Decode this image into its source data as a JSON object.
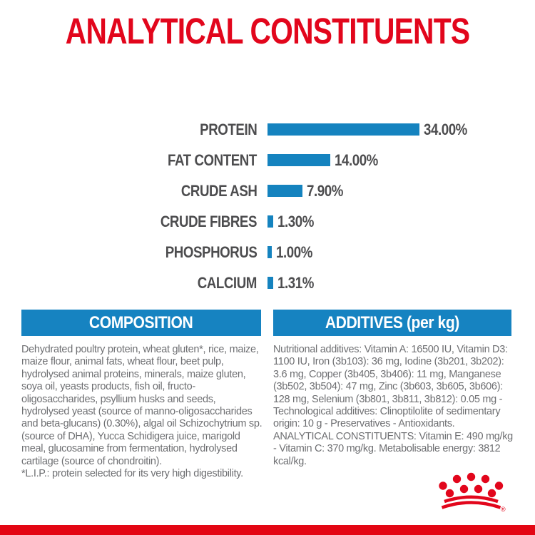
{
  "title": "ANALYTICAL CONSTITUENTS",
  "chart_data": {
    "type": "bar",
    "orientation": "horizontal",
    "categories": [
      "PROTEIN",
      "FAT CONTENT",
      "CRUDE ASH",
      "CRUDE FIBRES",
      "PHOSPHORUS",
      "CALCIUM"
    ],
    "values": [
      34.0,
      14.0,
      7.9,
      1.3,
      1.0,
      1.31
    ],
    "value_labels": [
      "34.00%",
      "14.00%",
      "7.90%",
      "1.30%",
      "1.00%",
      "1.31%"
    ],
    "title": "ANALYTICAL CONSTITUENTS",
    "xlabel": "",
    "ylabel": "",
    "xlim": [
      0,
      34
    ],
    "grid": false,
    "legend": false,
    "bar_color": "#1583bf",
    "label_color": "#4d4d4f"
  },
  "sections": {
    "composition": {
      "header": "COMPOSITION",
      "text": "Dehydrated poultry protein, wheat gluten*, rice, maize, maize flour, animal fats, wheat flour, beet pulp, hydrolysed animal proteins, minerals, maize gluten, soya oil, yeasts products, fish oil, fructo-oligosaccharides, psyllium husks and seeds, hydrolysed yeast (source of manno-oligosaccharides and beta-glucans) (0.30%), algal oil Schizochytrium sp. (source of DHA), Yucca Schidigera juice, marigold meal, glucosamine from fermentation, hydrolysed cartilage (source of chondroitin).",
      "footnote": "*L.I.P.: protein selected for its very high digestibility."
    },
    "additives": {
      "header": "ADDITIVES (per kg)",
      "text": "Nutritional additives: Vitamin A: 16500 IU, Vitamin D3: 1100 IU, Iron (3b103): 36 mg, Iodine (3b201, 3b202): 3.6 mg, Copper (3b405, 3b406): 11 mg, Manganese (3b502, 3b504): 47 mg, Zinc (3b603, 3b605, 3b606): 128 mg, Selenium (3b801, 3b811, 3b812): 0.05 mg - Technological additives: Clinoptilolite of sedimentary origin: 10 g - Preservatives - Antioxidants.",
      "analytical": "ANALYTICAL CONSTITUENTS: Vitamin E: 490 mg/kg - Vitamin C: 370 mg/kg. Metabolisable energy: 3812 kcal/kg."
    }
  },
  "footer": {
    "brand_logo": "royal-canin-crown-logo",
    "registered_mark": "®"
  },
  "colors": {
    "title_red": "#e2061c",
    "bar_blue": "#1583bf",
    "header_blue": "#1683c1",
    "label_gray": "#4d4d4f",
    "body_gray": "#6e6f72",
    "footer_red": "#e30613"
  }
}
